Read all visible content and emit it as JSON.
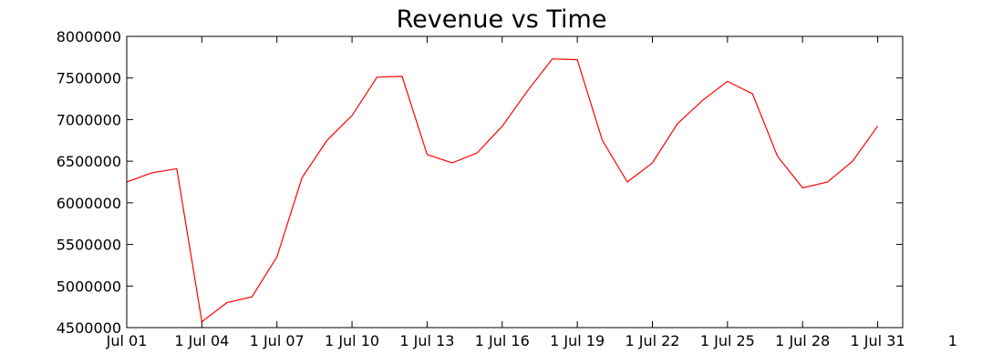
{
  "chart_data": {
    "type": "line",
    "title": "Revenue vs Time",
    "xlabel": "",
    "ylabel": "",
    "x_tick_labels": [
      "Jul 01",
      "1  Jul 04",
      "1  Jul 07",
      "1  Jul 10",
      "1  Jul 13",
      "1  Jul 16",
      "1  Jul 19",
      "1  Jul 22",
      "1  Jul 25",
      "1  Jul 28",
      "1  Jul 31",
      "1"
    ],
    "y_tick_labels": [
      "4500000",
      "5000000",
      "5500000",
      "6000000",
      "6500000",
      "7000000",
      "7500000",
      "8000000"
    ],
    "ylim": [
      4500000,
      8000000
    ],
    "xlim": [
      "Jul 01",
      "Aug 01"
    ],
    "grid": false,
    "series": [
      {
        "color": "#ff0000",
        "x": [
          "Jul 01",
          "Jul 02",
          "Jul 03",
          "Jul 04",
          "Jul 05",
          "Jul 06",
          "Jul 07",
          "Jul 08",
          "Jul 09",
          "Jul 10",
          "Jul 11",
          "Jul 12",
          "Jul 13",
          "Jul 14",
          "Jul 15",
          "Jul 16",
          "Jul 17",
          "Jul 18",
          "Jul 19",
          "Jul 20",
          "Jul 21",
          "Jul 22",
          "Jul 23",
          "Jul 24",
          "Jul 25",
          "Jul 26",
          "Jul 27",
          "Jul 28",
          "Jul 29",
          "Jul 30",
          "Jul 31"
        ],
        "values": [
          6250000,
          6360000,
          6410000,
          4570000,
          4800000,
          4870000,
          5350000,
          6300000,
          6750000,
          7050000,
          7510000,
          7520000,
          6580000,
          6480000,
          6600000,
          6920000,
          7340000,
          7730000,
          7720000,
          6750000,
          6250000,
          6480000,
          6950000,
          7230000,
          7460000,
          7310000,
          6560000,
          6180000,
          6250000,
          6500000,
          6920000
        ]
      }
    ]
  }
}
